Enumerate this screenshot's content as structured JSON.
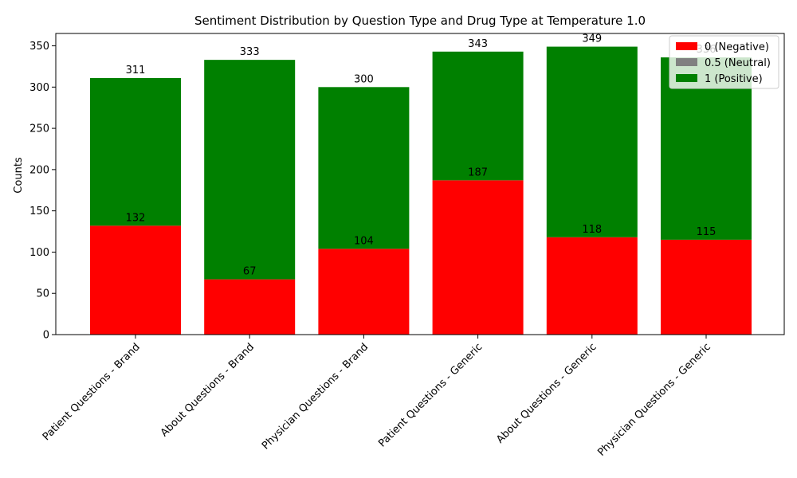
{
  "chart_data": {
    "type": "bar",
    "stacked": true,
    "title": "Sentiment Distribution by Question Type and Drug Type at Temperature 1.0",
    "xlabel": "",
    "ylabel": "Counts",
    "ylim": [
      0,
      365
    ],
    "yticks": [
      0,
      50,
      100,
      150,
      200,
      250,
      300,
      350
    ],
    "grid": false,
    "legend_position": "top-right",
    "categories": [
      "Patient Questions - Brand",
      "About Questions - Brand",
      "Physician Questions - Brand",
      "Patient Questions - Generic",
      "About Questions - Generic",
      "Physician Questions - Generic"
    ],
    "series": [
      {
        "name": "0 (Negative)",
        "color": "#ff0000",
        "values": [
          132,
          67,
          104,
          187,
          118,
          115
        ]
      },
      {
        "name": "0.5 (Neutral)",
        "color": "#808080",
        "values": [
          0,
          0,
          0,
          0,
          0,
          0
        ]
      },
      {
        "name": "1 (Positive)",
        "color": "#008000",
        "values": [
          179,
          266,
          196,
          156,
          231,
          221
        ]
      }
    ],
    "negative_labels": [
      132,
      67,
      104,
      187,
      118,
      115
    ],
    "total_labels": [
      311,
      333,
      300,
      343,
      349,
      336
    ]
  }
}
